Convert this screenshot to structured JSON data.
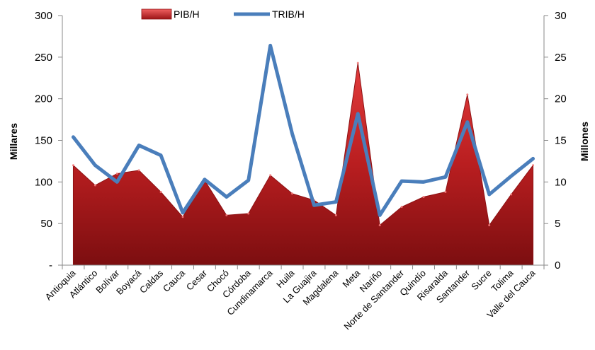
{
  "chart_data": {
    "type": "area+line",
    "categories": [
      "Antioquia",
      "Atlántico",
      "Bolívar",
      "Boyacá",
      "Caldas",
      "Cauca",
      "Cesar",
      "Chocó",
      "Córdoba",
      "Cundinamarca",
      "Huila",
      "La Guajira",
      "Magdalena",
      "Meta",
      "Nariño",
      "Norte de Santander",
      "Quindío",
      "Risaralda",
      "Santander",
      "Sucre",
      "Tolima",
      "Valle del Cauca"
    ],
    "series": [
      {
        "name": "PIB/H",
        "kind": "area",
        "axis": "left",
        "color": "#c0282a",
        "values": [
          120,
          96,
          110,
          114,
          88,
          58,
          102,
          60,
          62,
          108,
          86,
          78,
          60,
          243,
          48,
          70,
          82,
          88,
          205,
          48,
          85,
          120
        ]
      },
      {
        "name": "TRIB/H",
        "kind": "line",
        "axis": "right",
        "color": "#4a7ebb",
        "values": [
          15.4,
          12.0,
          10.0,
          14.4,
          13.2,
          6.3,
          10.3,
          8.2,
          10.2,
          26.4,
          15.8,
          7.2,
          7.6,
          18.2,
          6.0,
          10.1,
          10.0,
          10.6,
          17.2,
          8.5,
          10.7,
          12.8
        ]
      }
    ],
    "ylabel_left": "Millares",
    "ylabel_right": "Millones",
    "ylim_left": [
      0,
      300
    ],
    "ylim_right": [
      0,
      30
    ],
    "yticks_left": [
      0,
      50,
      100,
      150,
      200,
      250,
      300
    ],
    "yticks_left_labels": [
      "-",
      "50",
      "100",
      "150",
      "200",
      "250",
      "300"
    ],
    "yticks_right": [
      0,
      5,
      10,
      15,
      20,
      25,
      30
    ],
    "yticks_right_labels": [
      "0",
      "5",
      "10",
      "15",
      "20",
      "25",
      "30"
    ],
    "legend_position": "top",
    "grid": false
  }
}
